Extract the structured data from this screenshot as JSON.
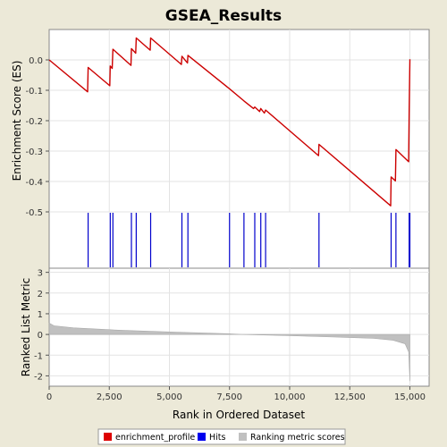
{
  "window": {
    "background": "#ece9d8"
  },
  "chart_data": {
    "type": "line",
    "title": "GSEA_Results",
    "xlabel": "Rank in Ordered Dataset",
    "xlim": [
      0,
      15800
    ],
    "x_ticks": [
      0,
      2500,
      5000,
      7500,
      10000,
      12500,
      15000
    ],
    "x_tick_labels": [
      "0",
      "2,500",
      "5,000",
      "7,500",
      "10,000",
      "12,500",
      "15,000"
    ],
    "es_panel": {
      "ylabel": "Enrichment Score (ES)",
      "ylim": [
        -0.5,
        0.1
      ],
      "y_ticks": [
        0.0,
        -0.1,
        -0.2,
        -0.3,
        -0.4,
        -0.5
      ],
      "y_tick_labels": [
        "0.0",
        "-0.1",
        "-0.2",
        "-0.3",
        "-0.4",
        "-0.5"
      ],
      "line_color": "#cc0000",
      "points": [
        [
          0,
          0.0
        ],
        [
          1600,
          -0.105
        ],
        [
          1620,
          -0.025
        ],
        [
          2520,
          -0.085
        ],
        [
          2540,
          -0.02
        ],
        [
          2620,
          -0.028
        ],
        [
          2650,
          0.035
        ],
        [
          3400,
          -0.018
        ],
        [
          3420,
          0.037
        ],
        [
          3600,
          0.022
        ],
        [
          3620,
          0.072
        ],
        [
          4200,
          0.032
        ],
        [
          4220,
          0.072
        ],
        [
          5500,
          -0.015
        ],
        [
          5520,
          0.012
        ],
        [
          5750,
          -0.01
        ],
        [
          5770,
          0.015
        ],
        [
          7500,
          -0.095
        ],
        [
          8100,
          -0.135
        ],
        [
          8500,
          -0.16
        ],
        [
          8550,
          -0.155
        ],
        [
          8750,
          -0.17
        ],
        [
          8800,
          -0.16
        ],
        [
          8950,
          -0.175
        ],
        [
          9000,
          -0.165
        ],
        [
          11200,
          -0.315
        ],
        [
          11220,
          -0.278
        ],
        [
          14200,
          -0.48
        ],
        [
          14220,
          -0.385
        ],
        [
          14400,
          -0.398
        ],
        [
          14420,
          -0.295
        ],
        [
          14950,
          -0.335
        ],
        [
          14970,
          -0.165
        ],
        [
          15000,
          0.002
        ]
      ]
    },
    "hits_panel": {
      "hit_color": "#0000cc",
      "hits": [
        1620,
        2540,
        2650,
        3420,
        3620,
        4220,
        5520,
        5770,
        7500,
        8100,
        8550,
        8800,
        9000,
        11220,
        14220,
        14420,
        14970,
        15000
      ]
    },
    "rank_panel": {
      "ylabel": "Ranked List Metric",
      "ylim": [
        -2.5,
        3.2
      ],
      "y_ticks": [
        3,
        2,
        1,
        0,
        -1,
        -2
      ],
      "y_tick_labels": [
        "3",
        "2",
        "1",
        "0",
        "-1",
        "-2"
      ],
      "fill_color": "#c0c0c0",
      "x": [
        0,
        200,
        1000,
        3000,
        5000,
        7500,
        8000,
        10000,
        12000,
        13500,
        14300,
        14800,
        14950,
        15000
      ],
      "values": [
        0.55,
        0.42,
        0.32,
        0.2,
        0.12,
        0.03,
        0.0,
        -0.06,
        -0.13,
        -0.19,
        -0.28,
        -0.45,
        -0.85,
        -2.25
      ]
    },
    "legend": {
      "placement": "bottom",
      "items": [
        {
          "label": "enrichment_profile",
          "color": "#dd0000"
        },
        {
          "label": "Hits",
          "color": "#0000ee"
        },
        {
          "label": "Ranking metric scores",
          "color": "#c0c0c0"
        }
      ]
    }
  }
}
